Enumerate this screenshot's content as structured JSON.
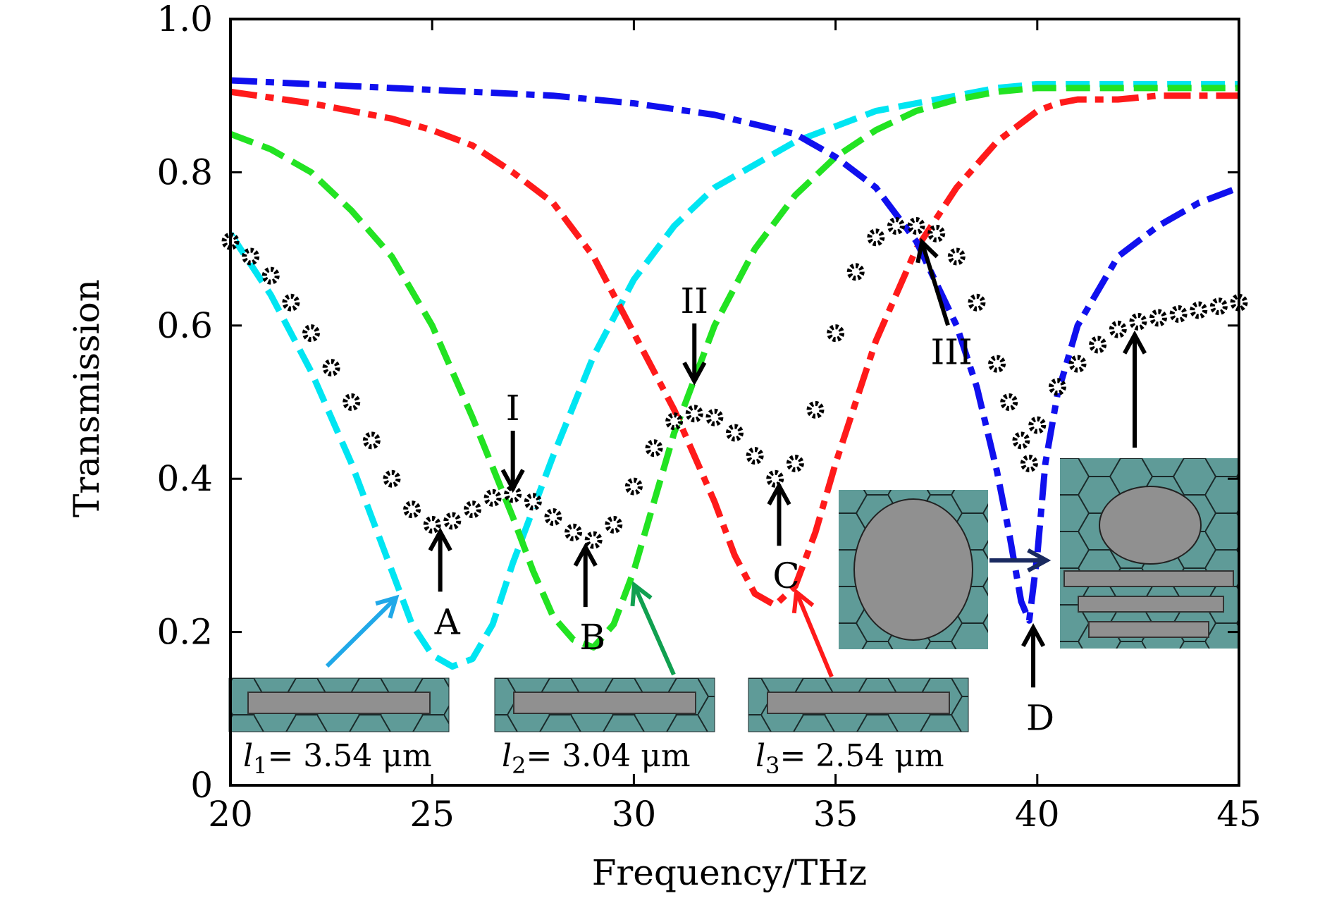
{
  "chart_data": {
    "type": "line",
    "xlabel": "Frequency/THz",
    "ylabel": "Transmission",
    "xlim": [
      20,
      45
    ],
    "ylim": [
      0,
      1.0
    ],
    "xticks": [
      20,
      25,
      30,
      35,
      40,
      45
    ],
    "yticks": [
      0,
      0.2,
      0.4,
      0.6,
      0.8,
      1.0
    ],
    "xtick_labels": [
      "20",
      "25",
      "30",
      "35",
      "40",
      "45"
    ],
    "ytick_labels": [
      "0",
      "0.2",
      "0.4",
      "0.6",
      "0.8",
      "1.0"
    ],
    "grid": false,
    "colors": {
      "cyan": "#00e5f2",
      "green": "#22e322",
      "red": "#ff1a1a",
      "blue": "#1010ee",
      "markers": "#000000",
      "inset_fill": "#5f9b98",
      "inset_rect": "#909090",
      "arrow_cyan": "#20a8e8",
      "arrow_green": "#10a050",
      "arrow_red": "#ff1a1a",
      "arrow_navy": "#1a2a60"
    },
    "series": [
      {
        "key": "cyan",
        "style": "dashed",
        "x": [
          20,
          21,
          22,
          23,
          24,
          24.5,
          25,
          25.5,
          26,
          26.5,
          27,
          28,
          29,
          30,
          31,
          32,
          33,
          34,
          35,
          36,
          37,
          38,
          39,
          40,
          41,
          42,
          43,
          44,
          45
        ],
        "y": [
          0.72,
          0.64,
          0.54,
          0.42,
          0.28,
          0.21,
          0.17,
          0.155,
          0.165,
          0.21,
          0.29,
          0.43,
          0.56,
          0.66,
          0.73,
          0.78,
          0.81,
          0.84,
          0.86,
          0.88,
          0.89,
          0.9,
          0.91,
          0.915,
          0.915,
          0.915,
          0.915,
          0.915,
          0.915
        ]
      },
      {
        "key": "green",
        "style": "dashed",
        "x": [
          20,
          21,
          22,
          23,
          24,
          25,
          26,
          27,
          27.5,
          28,
          28.5,
          29,
          29.5,
          30,
          30.5,
          31,
          32,
          33,
          34,
          35,
          36,
          37,
          38,
          39,
          40,
          41,
          42,
          43,
          44,
          45
        ],
        "y": [
          0.85,
          0.83,
          0.8,
          0.75,
          0.69,
          0.6,
          0.48,
          0.35,
          0.28,
          0.22,
          0.19,
          0.18,
          0.21,
          0.28,
          0.37,
          0.46,
          0.6,
          0.7,
          0.77,
          0.82,
          0.855,
          0.88,
          0.895,
          0.905,
          0.91,
          0.91,
          0.91,
          0.91,
          0.91,
          0.91
        ]
      },
      {
        "key": "red",
        "style": "dashdot",
        "x": [
          20,
          22,
          24,
          25,
          26,
          27,
          28,
          29,
          30,
          31,
          31.5,
          32,
          32.5,
          33,
          33.5,
          34,
          34.5,
          35,
          36,
          37,
          38,
          39,
          40,
          40.5,
          41,
          42,
          43,
          44,
          45
        ],
        "y": [
          0.905,
          0.89,
          0.87,
          0.855,
          0.835,
          0.8,
          0.76,
          0.69,
          0.59,
          0.49,
          0.43,
          0.37,
          0.3,
          0.25,
          0.235,
          0.26,
          0.33,
          0.42,
          0.58,
          0.7,
          0.78,
          0.84,
          0.88,
          0.89,
          0.895,
          0.895,
          0.9,
          0.9,
          0.9
        ]
      },
      {
        "key": "blue",
        "style": "dashdot",
        "x": [
          20,
          22,
          24,
          26,
          28,
          30,
          32,
          34,
          35,
          36,
          37,
          38,
          38.5,
          39,
          39.3,
          39.6,
          39.8,
          40,
          40.2,
          40.5,
          41,
          42,
          43,
          44,
          45
        ],
        "y": [
          0.92,
          0.915,
          0.91,
          0.905,
          0.9,
          0.89,
          0.875,
          0.85,
          0.82,
          0.78,
          0.71,
          0.6,
          0.52,
          0.41,
          0.33,
          0.24,
          0.215,
          0.3,
          0.42,
          0.51,
          0.6,
          0.69,
          0.73,
          0.76,
          0.78
        ]
      },
      {
        "key": "markers",
        "style": "markers",
        "x": [
          20,
          20.5,
          21,
          21.5,
          22,
          22.5,
          23,
          23.5,
          24,
          24.5,
          25,
          25.5,
          26,
          26.5,
          27,
          27.5,
          28,
          28.5,
          29,
          29.5,
          30,
          30.5,
          31,
          31.5,
          32,
          32.5,
          33,
          33.5,
          34,
          34.5,
          35,
          35.5,
          36,
          36.5,
          37,
          37.5,
          38,
          38.5,
          39,
          39.3,
          39.6,
          39.8,
          40,
          40.5,
          41,
          41.5,
          42,
          42.5,
          43,
          43.5,
          44,
          44.5,
          45
        ],
        "y": [
          0.71,
          0.69,
          0.665,
          0.63,
          0.59,
          0.545,
          0.5,
          0.45,
          0.4,
          0.36,
          0.34,
          0.345,
          0.36,
          0.375,
          0.38,
          0.37,
          0.35,
          0.33,
          0.32,
          0.34,
          0.39,
          0.44,
          0.475,
          0.485,
          0.48,
          0.46,
          0.43,
          0.4,
          0.42,
          0.49,
          0.59,
          0.67,
          0.715,
          0.73,
          0.73,
          0.72,
          0.69,
          0.63,
          0.55,
          0.5,
          0.45,
          0.42,
          0.47,
          0.52,
          0.55,
          0.575,
          0.595,
          0.605,
          0.61,
          0.615,
          0.62,
          0.625,
          0.63
        ]
      }
    ],
    "annotations": [
      {
        "text": "A",
        "arrow_to": [
          25.2,
          0.34
        ],
        "dir": "up"
      },
      {
        "text": "B",
        "arrow_to": [
          28.8,
          0.32
        ],
        "dir": "up"
      },
      {
        "text": "C",
        "arrow_to": [
          33.6,
          0.4
        ],
        "dir": "up"
      },
      {
        "text": "D",
        "arrow_to": [
          39.9,
          0.215
        ],
        "dir": "up"
      },
      {
        "text": "I",
        "arrow_to": [
          27.0,
          0.38
        ],
        "dir": "down"
      },
      {
        "text": "II",
        "arrow_to": [
          31.5,
          0.52
        ],
        "dir": "down"
      },
      {
        "text": "III",
        "arrow_to": [
          37.0,
          0.72
        ],
        "dir": "diag"
      }
    ],
    "inset_labels": [
      {
        "var": "l",
        "sub": "1",
        "text": "= 3.54 μm"
      },
      {
        "var": "l",
        "sub": "2",
        "text": "= 3.04 μm"
      },
      {
        "var": "l",
        "sub": "3",
        "text": "= 2.54 μm"
      }
    ]
  }
}
